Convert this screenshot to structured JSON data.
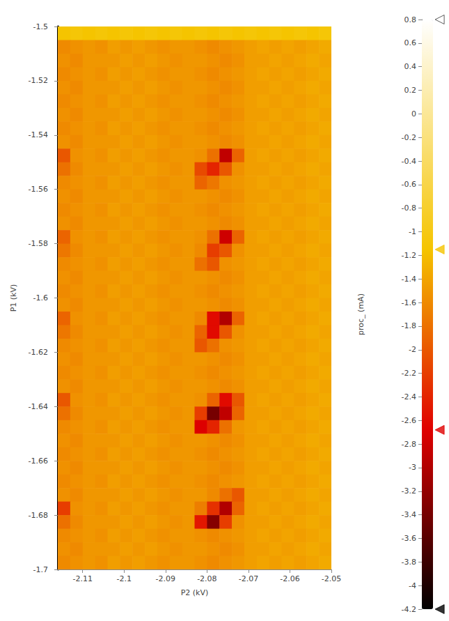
{
  "chart_data": {
    "type": "heatmap",
    "x_label": "P2 (kV)",
    "y_label": "P1 (kV)",
    "xlim": [
      -2.116,
      -2.05
    ],
    "xticks": [
      -2.11,
      -2.1,
      -2.09,
      -2.08,
      -2.07,
      -2.06,
      -2.05
    ],
    "ylim": [
      -1.7,
      -1.5
    ],
    "yticks": [
      -1.7,
      -1.68,
      -1.66,
      -1.64,
      -1.62,
      -1.6,
      -1.58,
      -1.56,
      -1.54,
      -1.52,
      -1.5
    ],
    "grid": false,
    "cells": {
      "x": [
        -2.1145,
        -2.1115,
        -2.1085,
        -2.1055,
        -2.1025,
        -2.0995,
        -2.0965,
        -2.0935,
        -2.0905,
        -2.0875,
        -2.0845,
        -2.0815,
        -2.0785,
        -2.0755,
        -2.0725,
        -2.0695,
        -2.0665,
        -2.0635,
        -2.0605,
        -2.0575,
        -2.0545,
        -2.0515
      ],
      "y": [
        -1.5025,
        -1.5075,
        -1.5125,
        -1.5175,
        -1.5225,
        -1.5275,
        -1.5325,
        -1.5375,
        -1.5425,
        -1.5475,
        -1.5525,
        -1.5575,
        -1.5625,
        -1.5675,
        -1.5725,
        -1.5775,
        -1.5825,
        -1.5875,
        -1.5925,
        -1.5975,
        -1.6025,
        -1.6075,
        -1.6125,
        -1.6175,
        -1.6225,
        -1.6275,
        -1.6325,
        -1.6375,
        -1.6425,
        -1.6475,
        -1.6525,
        -1.6575,
        -1.6625,
        -1.6675,
        -1.6725,
        -1.6775,
        -1.6825,
        -1.6875,
        -1.6925,
        -1.6975
      ],
      "values": [
        [
          -1.15,
          -1.1,
          -1.15,
          -1.1,
          -1.15,
          -1.1,
          -1.15,
          -1.1,
          -1.15,
          -1.1,
          -1.15,
          -1.1,
          -1.15,
          -1.1,
          -1.15,
          -1.1,
          -1.15,
          -1.1,
          -1.15,
          -1.1,
          -1.15,
          -1.1
        ],
        [
          -1.6,
          -1.55,
          -1.5,
          -1.55,
          -1.45,
          -1.5,
          -1.45,
          -1.5,
          -1.55,
          -1.5,
          -1.5,
          -1.55,
          -1.6,
          -1.55,
          -1.5,
          -1.45,
          -1.4,
          -1.45,
          -1.4,
          -1.45,
          -1.4,
          -1.35
        ],
        [
          -1.55,
          -1.6,
          -1.5,
          -1.5,
          -1.5,
          -1.45,
          -1.5,
          -1.45,
          -1.5,
          -1.55,
          -1.5,
          -1.5,
          -1.55,
          -1.6,
          -1.55,
          -1.45,
          -1.45,
          -1.4,
          -1.45,
          -1.4,
          -1.35,
          -1.4
        ],
        [
          -1.6,
          -1.55,
          -1.5,
          -1.55,
          -1.45,
          -1.5,
          -1.45,
          -1.5,
          -1.55,
          -1.5,
          -1.5,
          -1.55,
          -1.6,
          -1.55,
          -1.5,
          -1.45,
          -1.4,
          -1.45,
          -1.4,
          -1.45,
          -1.4,
          -1.35
        ],
        [
          -1.55,
          -1.6,
          -1.5,
          -1.5,
          -1.5,
          -1.45,
          -1.5,
          -1.45,
          -1.5,
          -1.55,
          -1.5,
          -1.5,
          -1.55,
          -1.6,
          -1.55,
          -1.45,
          -1.45,
          -1.4,
          -1.45,
          -1.4,
          -1.35,
          -1.4
        ],
        [
          -1.6,
          -1.55,
          -1.5,
          -1.55,
          -1.45,
          -1.5,
          -1.45,
          -1.5,
          -1.55,
          -1.5,
          -1.5,
          -1.55,
          -1.6,
          -1.55,
          -1.5,
          -1.45,
          -1.4,
          -1.45,
          -1.4,
          -1.45,
          -1.4,
          -1.35
        ],
        [
          -1.55,
          -1.6,
          -1.5,
          -1.5,
          -1.5,
          -1.45,
          -1.5,
          -1.45,
          -1.5,
          -1.55,
          -1.5,
          -1.5,
          -1.55,
          -1.6,
          -1.55,
          -1.45,
          -1.45,
          -1.4,
          -1.45,
          -1.4,
          -1.35,
          -1.4
        ],
        [
          -1.6,
          -1.55,
          -1.5,
          -1.55,
          -1.45,
          -1.5,
          -1.45,
          -1.5,
          -1.55,
          -1.5,
          -1.5,
          -1.55,
          -1.6,
          -1.55,
          -1.5,
          -1.45,
          -1.4,
          -1.45,
          -1.4,
          -1.45,
          -1.4,
          -1.35
        ],
        [
          -1.55,
          -1.6,
          -1.5,
          -1.5,
          -1.5,
          -1.45,
          -1.5,
          -1.45,
          -1.5,
          -1.55,
          -1.5,
          -1.5,
          -1.55,
          -1.6,
          -1.55,
          -1.45,
          -1.45,
          -1.4,
          -1.45,
          -1.4,
          -1.35,
          -1.4
        ],
        [
          -2.0,
          -1.55,
          -1.5,
          -1.55,
          -1.45,
          -1.5,
          -1.45,
          -1.5,
          -1.55,
          -1.5,
          -1.5,
          -1.55,
          -1.8,
          -2.9,
          -1.9,
          -1.45,
          -1.4,
          -1.45,
          -1.4,
          -1.45,
          -1.4,
          -1.35
        ],
        [
          -1.8,
          -1.6,
          -1.5,
          -1.5,
          -1.5,
          -1.45,
          -1.5,
          -1.45,
          -1.5,
          -1.55,
          -1.5,
          -2.1,
          -2.4,
          -2.0,
          -1.55,
          -1.45,
          -1.45,
          -1.4,
          -1.45,
          -1.4,
          -1.35,
          -1.4
        ],
        [
          -1.6,
          -1.55,
          -1.5,
          -1.55,
          -1.45,
          -1.5,
          -1.45,
          -1.5,
          -1.55,
          -1.5,
          -1.5,
          -1.9,
          -1.75,
          -1.55,
          -1.5,
          -1.45,
          -1.4,
          -1.45,
          -1.4,
          -1.45,
          -1.4,
          -1.35
        ],
        [
          -1.55,
          -1.6,
          -1.5,
          -1.5,
          -1.5,
          -1.45,
          -1.5,
          -1.45,
          -1.5,
          -1.55,
          -1.5,
          -1.5,
          -1.55,
          -1.6,
          -1.55,
          -1.45,
          -1.45,
          -1.4,
          -1.45,
          -1.4,
          -1.35,
          -1.4
        ],
        [
          -1.6,
          -1.55,
          -1.5,
          -1.55,
          -1.45,
          -1.5,
          -1.45,
          -1.5,
          -1.55,
          -1.5,
          -1.5,
          -1.55,
          -1.6,
          -1.55,
          -1.5,
          -1.45,
          -1.4,
          -1.45,
          -1.4,
          -1.45,
          -1.4,
          -1.35
        ],
        [
          -1.55,
          -1.6,
          -1.5,
          -1.5,
          -1.5,
          -1.45,
          -1.5,
          -1.45,
          -1.5,
          -1.55,
          -1.5,
          -1.5,
          -1.55,
          -1.6,
          -1.55,
          -1.45,
          -1.45,
          -1.4,
          -1.45,
          -1.4,
          -1.35,
          -1.4
        ],
        [
          -1.9,
          -1.55,
          -1.5,
          -1.55,
          -1.45,
          -1.5,
          -1.45,
          -1.5,
          -1.55,
          -1.5,
          -1.5,
          -1.55,
          -1.8,
          -2.8,
          -1.9,
          -1.45,
          -1.4,
          -1.45,
          -1.4,
          -1.45,
          -1.4,
          -1.35
        ],
        [
          -1.75,
          -1.6,
          -1.5,
          -1.5,
          -1.5,
          -1.45,
          -1.5,
          -1.45,
          -1.5,
          -1.55,
          -1.5,
          -1.6,
          -2.2,
          -2.0,
          -1.55,
          -1.45,
          -1.45,
          -1.4,
          -1.45,
          -1.4,
          -1.35,
          -1.4
        ],
        [
          -1.6,
          -1.55,
          -1.5,
          -1.55,
          -1.45,
          -1.5,
          -1.45,
          -1.5,
          -1.55,
          -1.5,
          -1.5,
          -1.8,
          -2.0,
          -1.55,
          -1.5,
          -1.45,
          -1.4,
          -1.45,
          -1.4,
          -1.45,
          -1.4,
          -1.35
        ],
        [
          -1.55,
          -1.6,
          -1.5,
          -1.5,
          -1.5,
          -1.45,
          -1.5,
          -1.45,
          -1.5,
          -1.55,
          -1.5,
          -1.5,
          -1.55,
          -1.6,
          -1.55,
          -1.45,
          -1.45,
          -1.4,
          -1.45,
          -1.4,
          -1.35,
          -1.4
        ],
        [
          -1.6,
          -1.55,
          -1.5,
          -1.55,
          -1.45,
          -1.5,
          -1.45,
          -1.5,
          -1.55,
          -1.5,
          -1.5,
          -1.55,
          -1.6,
          -1.55,
          -1.5,
          -1.45,
          -1.4,
          -1.45,
          -1.4,
          -1.45,
          -1.4,
          -1.35
        ],
        [
          -1.55,
          -1.6,
          -1.5,
          -1.5,
          -1.5,
          -1.45,
          -1.5,
          -1.45,
          -1.5,
          -1.55,
          -1.5,
          -1.5,
          -1.55,
          -1.6,
          -1.55,
          -1.45,
          -1.45,
          -1.4,
          -1.45,
          -1.4,
          -1.35,
          -1.4
        ],
        [
          -1.9,
          -1.55,
          -1.5,
          -1.55,
          -1.45,
          -1.5,
          -1.45,
          -1.5,
          -1.55,
          -1.5,
          -1.5,
          -1.6,
          -2.6,
          -3.0,
          -1.9,
          -1.45,
          -1.4,
          -1.45,
          -1.4,
          -1.45,
          -1.4,
          -1.35
        ],
        [
          -1.75,
          -1.6,
          -1.5,
          -1.5,
          -1.5,
          -1.45,
          -1.5,
          -1.45,
          -1.5,
          -1.55,
          -1.5,
          -1.9,
          -2.6,
          -2.0,
          -1.55,
          -1.45,
          -1.45,
          -1.4,
          -1.45,
          -1.4,
          -1.35,
          -1.4
        ],
        [
          -1.6,
          -1.55,
          -1.5,
          -1.55,
          -1.45,
          -1.5,
          -1.45,
          -1.5,
          -1.55,
          -1.5,
          -1.5,
          -2.0,
          -1.8,
          -1.55,
          -1.5,
          -1.45,
          -1.4,
          -1.45,
          -1.4,
          -1.45,
          -1.4,
          -1.35
        ],
        [
          -1.55,
          -1.6,
          -1.5,
          -1.5,
          -1.5,
          -1.45,
          -1.5,
          -1.45,
          -1.5,
          -1.55,
          -1.5,
          -1.5,
          -1.55,
          -1.6,
          -1.55,
          -1.45,
          -1.45,
          -1.4,
          -1.45,
          -1.4,
          -1.35,
          -1.4
        ],
        [
          -1.6,
          -1.55,
          -1.5,
          -1.55,
          -1.45,
          -1.5,
          -1.45,
          -1.5,
          -1.55,
          -1.5,
          -1.5,
          -1.55,
          -1.6,
          -1.55,
          -1.5,
          -1.45,
          -1.4,
          -1.45,
          -1.4,
          -1.45,
          -1.4,
          -1.35
        ],
        [
          -1.55,
          -1.6,
          -1.5,
          -1.5,
          -1.5,
          -1.45,
          -1.5,
          -1.45,
          -1.5,
          -1.55,
          -1.5,
          -1.5,
          -1.55,
          -1.6,
          -1.55,
          -1.45,
          -1.45,
          -1.4,
          -1.45,
          -1.4,
          -1.35,
          -1.4
        ],
        [
          -2.0,
          -1.55,
          -1.5,
          -1.55,
          -1.45,
          -1.5,
          -1.45,
          -1.5,
          -1.55,
          -1.5,
          -1.5,
          -1.55,
          -1.9,
          -2.6,
          -2.0,
          -1.45,
          -1.4,
          -1.45,
          -1.4,
          -1.45,
          -1.4,
          -1.35
        ],
        [
          -1.8,
          -1.6,
          -1.5,
          -1.5,
          -1.5,
          -1.45,
          -1.5,
          -1.45,
          -1.5,
          -1.55,
          -1.5,
          -2.2,
          -3.4,
          -2.9,
          -1.9,
          -1.45,
          -1.45,
          -1.4,
          -1.45,
          -1.4,
          -1.35,
          -1.4
        ],
        [
          -1.6,
          -1.55,
          -1.5,
          -1.55,
          -1.45,
          -1.5,
          -1.45,
          -1.5,
          -1.55,
          -1.5,
          -1.5,
          -2.7,
          -2.4,
          -1.8,
          -1.5,
          -1.45,
          -1.4,
          -1.45,
          -1.4,
          -1.45,
          -1.4,
          -1.35
        ],
        [
          -1.55,
          -1.6,
          -1.5,
          -1.5,
          -1.5,
          -1.45,
          -1.5,
          -1.45,
          -1.5,
          -1.55,
          -1.5,
          -1.5,
          -1.55,
          -1.6,
          -1.55,
          -1.45,
          -1.45,
          -1.4,
          -1.45,
          -1.4,
          -1.35,
          -1.4
        ],
        [
          -1.6,
          -1.55,
          -1.5,
          -1.55,
          -1.45,
          -1.5,
          -1.45,
          -1.5,
          -1.55,
          -1.5,
          -1.5,
          -1.55,
          -1.6,
          -1.55,
          -1.5,
          -1.45,
          -1.4,
          -1.45,
          -1.4,
          -1.45,
          -1.4,
          -1.35
        ],
        [
          -1.55,
          -1.6,
          -1.5,
          -1.5,
          -1.5,
          -1.45,
          -1.5,
          -1.45,
          -1.5,
          -1.55,
          -1.5,
          -1.5,
          -1.55,
          -1.6,
          -1.55,
          -1.45,
          -1.45,
          -1.4,
          -1.45,
          -1.4,
          -1.35,
          -1.4
        ],
        [
          -1.6,
          -1.55,
          -1.5,
          -1.55,
          -1.45,
          -1.5,
          -1.45,
          -1.5,
          -1.55,
          -1.5,
          -1.5,
          -1.55,
          -1.6,
          -1.55,
          -1.5,
          -1.45,
          -1.4,
          -1.45,
          -1.4,
          -1.45,
          -1.4,
          -1.35
        ],
        [
          -1.55,
          -1.6,
          -1.5,
          -1.5,
          -1.5,
          -1.45,
          -1.5,
          -1.45,
          -1.5,
          -1.55,
          -1.5,
          -1.5,
          -1.6,
          -1.8,
          -2.0,
          -1.45,
          -1.45,
          -1.4,
          -1.45,
          -1.4,
          -1.35,
          -1.4
        ],
        [
          -2.2,
          -1.55,
          -1.5,
          -1.55,
          -1.45,
          -1.5,
          -1.45,
          -1.5,
          -1.55,
          -1.5,
          -1.5,
          -1.7,
          -2.3,
          -3.0,
          -1.9,
          -1.45,
          -1.4,
          -1.45,
          -1.4,
          -1.45,
          -1.4,
          -1.35
        ],
        [
          -1.8,
          -1.6,
          -1.5,
          -1.5,
          -1.5,
          -1.45,
          -1.5,
          -1.45,
          -1.5,
          -1.55,
          -1.5,
          -2.5,
          -3.3,
          -2.2,
          -1.55,
          -1.45,
          -1.45,
          -1.4,
          -1.45,
          -1.4,
          -1.35,
          -1.4
        ],
        [
          -1.6,
          -1.55,
          -1.5,
          -1.55,
          -1.45,
          -1.5,
          -1.45,
          -1.5,
          -1.55,
          -1.5,
          -1.5,
          -1.55,
          -1.6,
          -1.55,
          -1.5,
          -1.45,
          -1.4,
          -1.45,
          -1.4,
          -1.45,
          -1.4,
          -1.35
        ],
        [
          -1.55,
          -1.6,
          -1.5,
          -1.5,
          -1.5,
          -1.45,
          -1.5,
          -1.45,
          -1.5,
          -1.55,
          -1.5,
          -1.5,
          -1.55,
          -1.6,
          -1.55,
          -1.45,
          -1.45,
          -1.4,
          -1.45,
          -1.4,
          -1.35,
          -1.4
        ],
        [
          -1.6,
          -1.55,
          -1.5,
          -1.55,
          -1.45,
          -1.5,
          -1.45,
          -1.5,
          -1.55,
          -1.5,
          -1.5,
          -1.55,
          -1.6,
          -1.55,
          -1.5,
          -1.45,
          -1.4,
          -1.45,
          -1.4,
          -1.45,
          -1.4,
          -1.35
        ]
      ]
    },
    "colorbar": {
      "label": "proc_ (mA)",
      "range": [
        -4.2,
        0.8
      ],
      "ticks": [
        -4.2,
        -4,
        -3.8,
        -3.6,
        -3.4,
        -3.2,
        -3,
        -2.8,
        -2.6,
        -2.4,
        -2.2,
        -2,
        -1.8,
        -1.6,
        -1.4,
        -1.2,
        -1,
        -0.8,
        -0.6,
        -0.4,
        -0.2,
        0,
        0.2,
        0.4,
        0.6,
        0.8
      ],
      "stops": [
        {
          "value": -4.2,
          "color": "#000000"
        },
        {
          "value": -2.68,
          "color": "#e00000"
        },
        {
          "value": -1.15,
          "color": "#f5c400"
        },
        {
          "value": 0.8,
          "color": "#ffffff"
        }
      ]
    }
  }
}
